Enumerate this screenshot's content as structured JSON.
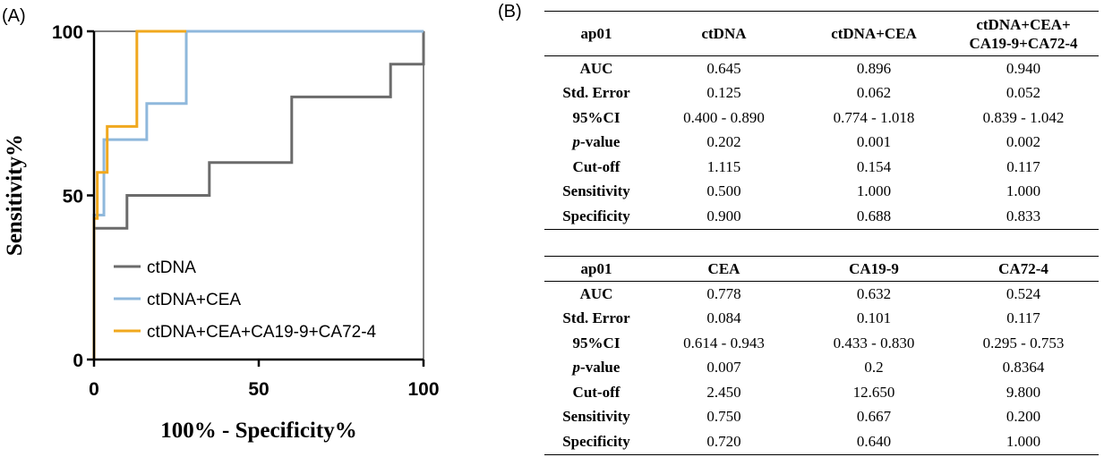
{
  "panel_labels": {
    "a": "(A)",
    "b": "(B)"
  },
  "chart_data": {
    "type": "line",
    "xlabel": "100% - Specificity%",
    "ylabel": "Sensitivity%",
    "xlim": [
      0,
      100
    ],
    "ylim": [
      0,
      100
    ],
    "xticks": [
      "0",
      "50",
      "100"
    ],
    "yticks": [
      "0",
      "50",
      "100"
    ],
    "legend_position": "bottom-right",
    "series": [
      {
        "name": "ctDNA",
        "color": "#6b6b6b",
        "x": [
          0,
          0,
          10,
          10,
          35,
          35,
          60,
          60,
          90,
          90,
          100,
          100
        ],
        "y": [
          0,
          40,
          40,
          50,
          50,
          60,
          60,
          80,
          80,
          90,
          90,
          100
        ]
      },
      {
        "name": "ctDNA+CEA",
        "color": "#8fb8dc",
        "x": [
          0,
          0,
          3,
          3,
          16,
          16,
          28,
          28,
          100
        ],
        "y": [
          0,
          44,
          44,
          67,
          67,
          78,
          78,
          100,
          100
        ]
      },
      {
        "name": "ctDNA+CEA+CA19-9+CA72-4",
        "color": "#f0a81e",
        "x": [
          0,
          0,
          1,
          1,
          4,
          4,
          13,
          13,
          28
        ],
        "y": [
          0,
          43,
          43,
          57,
          57,
          71,
          71,
          100,
          100
        ]
      }
    ]
  },
  "table1": {
    "headers": [
      "ap01",
      "ctDNA",
      "ctDNA+CEA",
      "ctDNA+CEA+",
      "CA19-9+CA72-4"
    ],
    "rows": [
      {
        "label": "AUC",
        "v1": "0.645",
        "v2": "0.896",
        "v3": "0.940"
      },
      {
        "label": "Std. Error",
        "v1": "0.125",
        "v2": "0.062",
        "v3": "0.052"
      },
      {
        "label": "95%CI",
        "v1": "0.400 - 0.890",
        "v2": "0.774 - 1.018",
        "v3": "0.839 - 1.042"
      },
      {
        "label_p": "p",
        "label_rest": "-value",
        "v1": "0.202",
        "v2": "0.001",
        "v3": "0.002"
      },
      {
        "label": "Cut-off",
        "v1": "1.115",
        "v2": "0.154",
        "v3": "0.117"
      },
      {
        "label": "Sensitivity",
        "v1": "0.500",
        "v2": "1.000",
        "v3": "1.000"
      },
      {
        "label": "Specificity",
        "v1": "0.900",
        "v2": "0.688",
        "v3": "0.833"
      }
    ]
  },
  "table2": {
    "headers": [
      "ap01",
      "CEA",
      "CA19-9",
      "CA72-4"
    ],
    "rows": [
      {
        "label": "AUC",
        "v1": "0.778",
        "v2": "0.632",
        "v3": "0.524"
      },
      {
        "label": "Std. Error",
        "v1": "0.084",
        "v2": "0.101",
        "v3": "0.117"
      },
      {
        "label": "95%CI",
        "v1": "0.614 - 0.943",
        "v2": "0.433 - 0.830",
        "v3": "0.295 - 0.753"
      },
      {
        "label_p": "p",
        "label_rest": "-value",
        "v1": "0.007",
        "v2": "0.2",
        "v3": "0.8364"
      },
      {
        "label": "Cut-off",
        "v1": "2.450",
        "v2": "12.650",
        "v3": "9.800"
      },
      {
        "label": "Sensitivity",
        "v1": "0.750",
        "v2": "0.667",
        "v3": "0.200"
      },
      {
        "label": "Specificity",
        "v1": "0.720",
        "v2": "0.640",
        "v3": "1.000"
      }
    ]
  }
}
